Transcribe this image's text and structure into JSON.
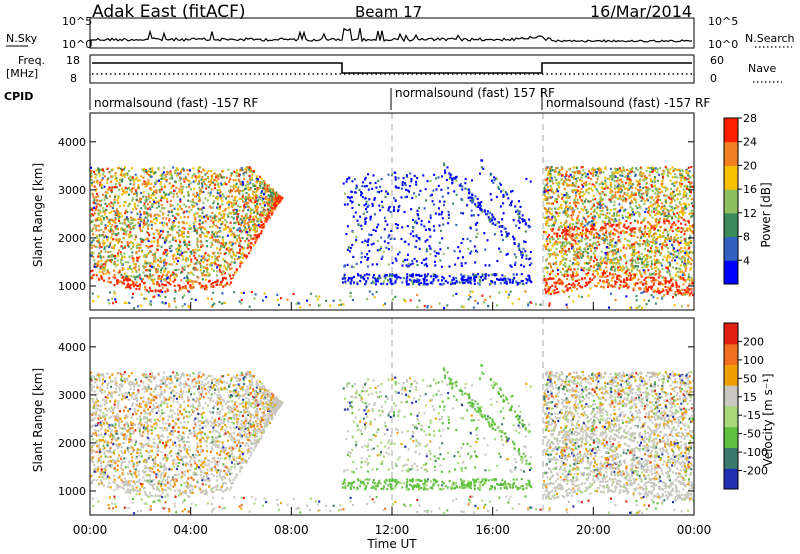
{
  "header": {
    "station": "Adak East (fitACF)",
    "beam": "Beam 17",
    "date": "16/Mar/2014"
  },
  "noise_panel": {
    "left_label": "N.Sky",
    "right_label": "N.Search",
    "left_ticks": [
      "10^5",
      "10^0"
    ],
    "right_ticks": [
      "10^5",
      "10^0"
    ]
  },
  "freq_panel": {
    "left_label_1": "Freq.",
    "left_label_2": "[MHz]",
    "right_label": "Nave",
    "left_ticks": [
      "18",
      "8"
    ],
    "right_ticks": [
      "60",
      "0"
    ]
  },
  "cpid": {
    "label": "CPID",
    "segments": [
      {
        "start": 0,
        "end": 12,
        "text": "normalsound (fast) -157 RF"
      },
      {
        "start": 12,
        "end": 18,
        "text": "normalsound (fast) 157 RF"
      },
      {
        "start": 18,
        "end": 24,
        "text": "normalsound (fast) -157 RF"
      }
    ]
  },
  "chart_data": [
    {
      "type": "heatmap",
      "name": "power",
      "ylabel": "Slant Range [km]",
      "yticks": [
        "1000",
        "2000",
        "3000",
        "4000"
      ],
      "ylim": [
        500,
        4600
      ],
      "xlim": [
        0,
        24
      ],
      "colorbar": {
        "label": "Power [dB]",
        "ticks": [
          "4",
          "8",
          "12",
          "16",
          "20",
          "24",
          "28"
        ],
        "colors": [
          "#0000ff",
          "#3060c0",
          "#3a8a5a",
          "#8fc060",
          "#f4c000",
          "#f08020",
          "#ff2000"
        ]
      },
      "features": [
        {
          "t0": 0,
          "t1": 7.5,
          "r0": 900,
          "r1": 3500,
          "level": "high",
          "color": "#f07020"
        },
        {
          "t0": 10,
          "t1": 17.5,
          "r0": 900,
          "r1": 3500,
          "level": "low",
          "color": "#1040c0"
        },
        {
          "t0": 18,
          "t1": 24,
          "r0": 850,
          "r1": 3500,
          "level": "high",
          "color": "#f04010"
        }
      ]
    },
    {
      "type": "heatmap",
      "name": "velocity",
      "ylabel": "Slant Range [km]",
      "yticks": [
        "1000",
        "2000",
        "3000",
        "4000"
      ],
      "ylim": [
        500,
        4600
      ],
      "xlim": [
        0,
        24
      ],
      "xlabel": "Time UT",
      "xticks": [
        "00:00",
        "04:00",
        "08:00",
        "12:00",
        "16:00",
        "20:00",
        "00:00"
      ],
      "colorbar": {
        "label": "Velocity [m s⁻¹]",
        "ticks": [
          "200",
          "100",
          "50",
          "15",
          "-15",
          "-50",
          "-100",
          "-200"
        ],
        "colors": [
          "#2030b0",
          "#3a7a6a",
          "#60c040",
          "#a8d878",
          "#c8c8c0",
          "#f0a000",
          "#f07020",
          "#e02010"
        ]
      }
    }
  ]
}
